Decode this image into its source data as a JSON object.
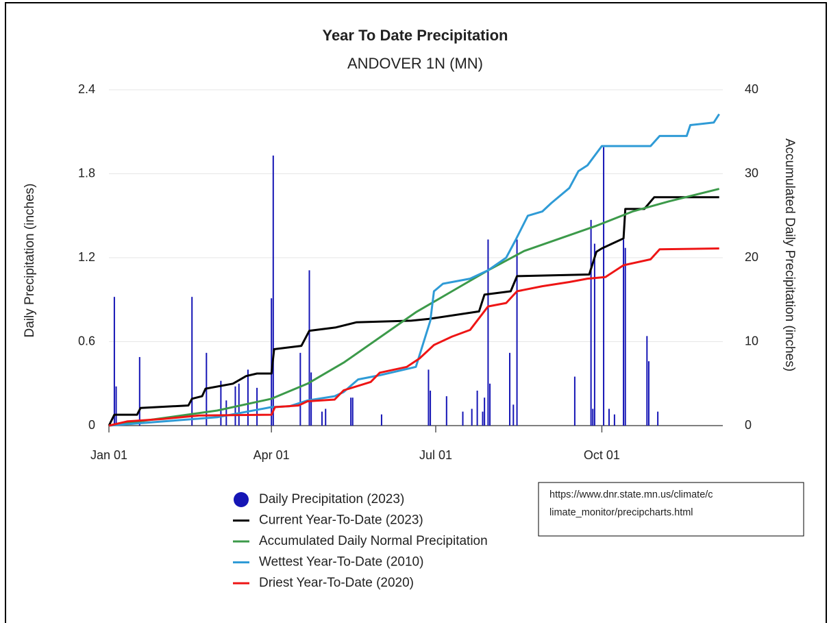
{
  "chart_data": {
    "type": "line",
    "title": "Year To Date Precipitation",
    "subtitle": "ANDOVER 1N (MN)",
    "y_label": "Daily Precipitation (inches)",
    "y2_label": "Accumulated Daily Precipitation (inches)",
    "xlim": [
      0,
      340
    ],
    "xticks": [
      {
        "value": 0,
        "label": "Jan 01"
      },
      {
        "value": 90,
        "label": "Apr 01"
      },
      {
        "value": 181,
        "label": "Jul 01"
      },
      {
        "value": 273,
        "label": "Oct 01"
      }
    ],
    "ylim": [
      0,
      2.4
    ],
    "yticks": [
      0,
      0.6,
      1.2,
      1.8,
      2.4
    ],
    "y2lim": [
      0,
      40
    ],
    "y2ticks": [
      0,
      10,
      20,
      30,
      40
    ],
    "grid": true,
    "series": [
      {
        "name": "Daily Precipitation (2023)",
        "type": "bar",
        "color": "#1515b5",
        "x": [
          3,
          4,
          17,
          46,
          54,
          62,
          65,
          70,
          72,
          77,
          82,
          90,
          91,
          106,
          111,
          112,
          118,
          120,
          134,
          135,
          151,
          177,
          178,
          187,
          196,
          201,
          204,
          207,
          208,
          210,
          211,
          222,
          224,
          226,
          258,
          267,
          268,
          269,
          274,
          277,
          280,
          285,
          286,
          298,
          299,
          304
        ],
        "values": [
          0.92,
          0.28,
          0.49,
          0.92,
          0.52,
          0.32,
          0.18,
          0.28,
          0.3,
          0.4,
          0.27,
          0.91,
          1.93,
          0.52,
          1.11,
          0.38,
          0.1,
          0.12,
          0.2,
          0.2,
          0.08,
          0.4,
          0.25,
          0.21,
          0.1,
          0.12,
          0.25,
          0.1,
          0.2,
          1.33,
          0.3,
          0.52,
          0.15,
          1.33,
          0.35,
          1.47,
          0.12,
          1.3,
          1.99,
          0.12,
          0.08,
          1.33,
          1.27,
          0.64,
          0.46,
          0.1
        ]
      },
      {
        "name": "Current Year-To-Date (2023)",
        "type": "line",
        "axis": "y2",
        "color": "#000000",
        "x": [
          0,
          3,
          15.6,
          17.5,
          44,
          46,
          51.6,
          53.5,
          68.7,
          76,
          82,
          90,
          91.5,
          106.6,
          111,
          125.7,
          137,
          167.5,
          177,
          205,
          208,
          222.5,
          226,
          266,
          270,
          273,
          285,
          286,
          296.5,
          302,
          338
        ],
        "values": [
          0,
          1.3,
          1.3,
          2.1,
          2.4,
          3.2,
          3.5,
          4.4,
          5,
          5.9,
          6.2,
          6.2,
          9.1,
          9.5,
          11.3,
          11.7,
          12.3,
          12.5,
          12.7,
          13.6,
          15.6,
          16,
          17.8,
          18,
          20.7,
          21.1,
          22.3,
          25.8,
          25.8,
          27.2,
          27.2
        ]
      },
      {
        "name": "Accumulated Daily Normal Precipitation",
        "type": "line",
        "axis": "y2",
        "color": "#3c9a4a",
        "x": [
          0,
          30,
          60,
          90,
          110,
          130,
          150,
          170,
          190,
          210,
          230,
          250,
          270,
          290,
          310,
          338
        ],
        "values": [
          0,
          0.9,
          1.8,
          3.2,
          5,
          7.5,
          10.5,
          13.5,
          16,
          18.5,
          20.8,
          22.3,
          23.8,
          25.5,
          26.7,
          28.2
        ]
      },
      {
        "name": "Wettest Year-To-Date (2010)",
        "type": "line",
        "axis": "y2",
        "color": "#2f9bd6",
        "x": [
          0,
          30,
          60,
          90,
          100,
          110,
          125,
          130,
          138,
          150,
          170,
          178,
          180,
          185,
          200,
          210,
          220,
          225,
          232,
          240,
          245,
          255,
          260,
          265,
          273,
          300,
          305,
          320,
          322,
          335,
          338
        ],
        "values": [
          0,
          0.5,
          1,
          2.2,
          2.3,
          3,
          3.5,
          4,
          5.5,
          6,
          7,
          12.5,
          16,
          16.9,
          17.5,
          18.5,
          20,
          22,
          25,
          25.5,
          26.5,
          28.3,
          30.3,
          31,
          33.3,
          33.3,
          34.5,
          34.5,
          35.8,
          36.1,
          37.1
        ]
      },
      {
        "name": "Driest Year-To-Date (2020)",
        "type": "line",
        "axis": "y2",
        "color": "#ee1515",
        "x": [
          0,
          10,
          30,
          50,
          90,
          92,
          105,
          110,
          125,
          130,
          145,
          150,
          165,
          172,
          180,
          190,
          200,
          210,
          220,
          226,
          240,
          255,
          265,
          275,
          285,
          300,
          305,
          338
        ],
        "values": [
          0,
          0.5,
          0.8,
          1.2,
          1.3,
          2.2,
          2.4,
          2.9,
          3.1,
          4.2,
          5.2,
          6.3,
          7,
          8,
          9.6,
          10.6,
          11.4,
          14.2,
          14.6,
          16,
          16.6,
          17.1,
          17.5,
          17.7,
          19.1,
          19.8,
          21,
          21.1
        ]
      }
    ],
    "source_note": [
      "https://www.dnr.state.mn.us/climate/c",
      "limate_monitor/precipcharts.html"
    ]
  }
}
